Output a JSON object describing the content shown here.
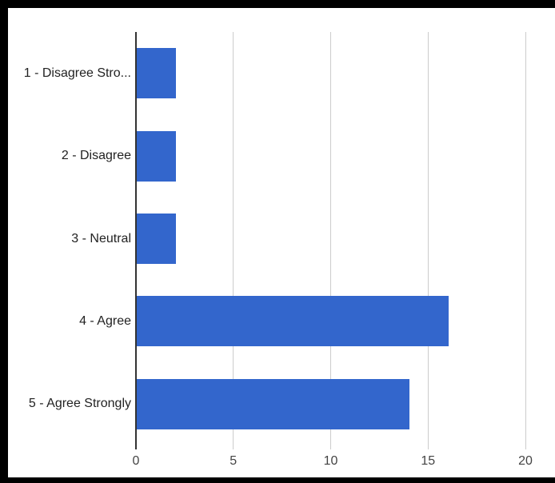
{
  "chart_data": {
    "type": "bar",
    "orientation": "horizontal",
    "title": "",
    "xlabel": "",
    "ylabel": "",
    "categories": [
      "1 - Disagree Stro...",
      "2 - Disagree",
      "3 - Neutral",
      "4 - Agree",
      "5 - Agree Strongly"
    ],
    "values": [
      2,
      2,
      2,
      16,
      14
    ],
    "x_ticks": [
      0,
      5,
      10,
      15,
      20
    ],
    "xlim": [
      0,
      20
    ],
    "grid": true,
    "legend": "none",
    "colors": {
      "bar": "#3366cc",
      "axis_line": "#333333",
      "gridline": "#cccccc",
      "tick_label": "#444444",
      "category_label": "#222222",
      "plot_background": "#ffffff",
      "frame": "#000000"
    }
  }
}
